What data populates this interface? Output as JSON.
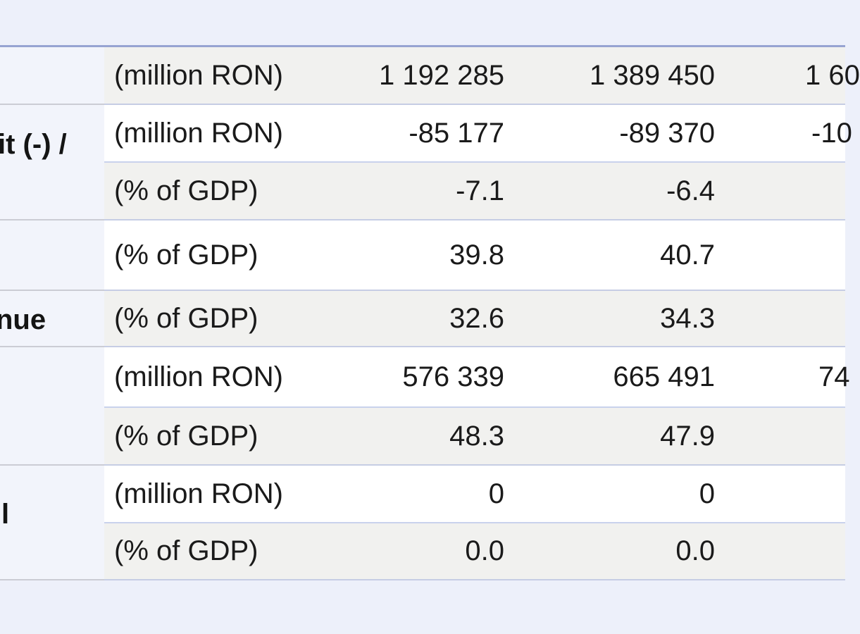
{
  "page": {
    "description": "Cropped statistics web-table of Romanian general government finance figures",
    "background_color": "#edf0fa"
  },
  "colors": {
    "top_rule": "#97a4d2",
    "row_gray_bg": "#f1f1ef",
    "row_white_bg": "#ffffff",
    "label_column_bg": "#f2f4fb",
    "inner_separator": "#c9d2ec",
    "group_separator": "#cbccd4",
    "text": "#1a1a1a"
  },
  "table": {
    "row_labels": [
      {
        "id": "deficit",
        "text": "it (-) /"
      },
      {
        "id": "revenue",
        "text": "nue"
      },
      {
        "id": "last",
        "text": "l"
      }
    ],
    "rows": [
      {
        "unit": "(million RON)",
        "col1": "1 192 285",
        "col2": "1 389 450",
        "col3_clipped": "1 60"
      },
      {
        "unit": "(million RON)",
        "col1": "-85 177",
        "col2": "-89 370",
        "col3_clipped": "-10"
      },
      {
        "unit": "(% of GDP)",
        "col1": "-7.1",
        "col2": "-6.4",
        "col3_clipped": ""
      },
      {
        "unit": "(% of GDP)",
        "col1": "39.8",
        "col2": "40.7",
        "col3_clipped": ""
      },
      {
        "unit": "(% of GDP)",
        "col1": "32.6",
        "col2": "34.3",
        "col3_clipped": ""
      },
      {
        "unit": "(million RON)",
        "col1": "576 339",
        "col2": "665 491",
        "col3_clipped": "74"
      },
      {
        "unit": "(% of GDP)",
        "col1": "48.3",
        "col2": "47.9",
        "col3_clipped": ""
      },
      {
        "unit": "(million RON)",
        "col1": "0",
        "col2": "0",
        "col3_clipped": ""
      },
      {
        "unit": "(% of GDP)",
        "col1": "0.0",
        "col2": "0.0",
        "col3_clipped": ""
      }
    ]
  }
}
